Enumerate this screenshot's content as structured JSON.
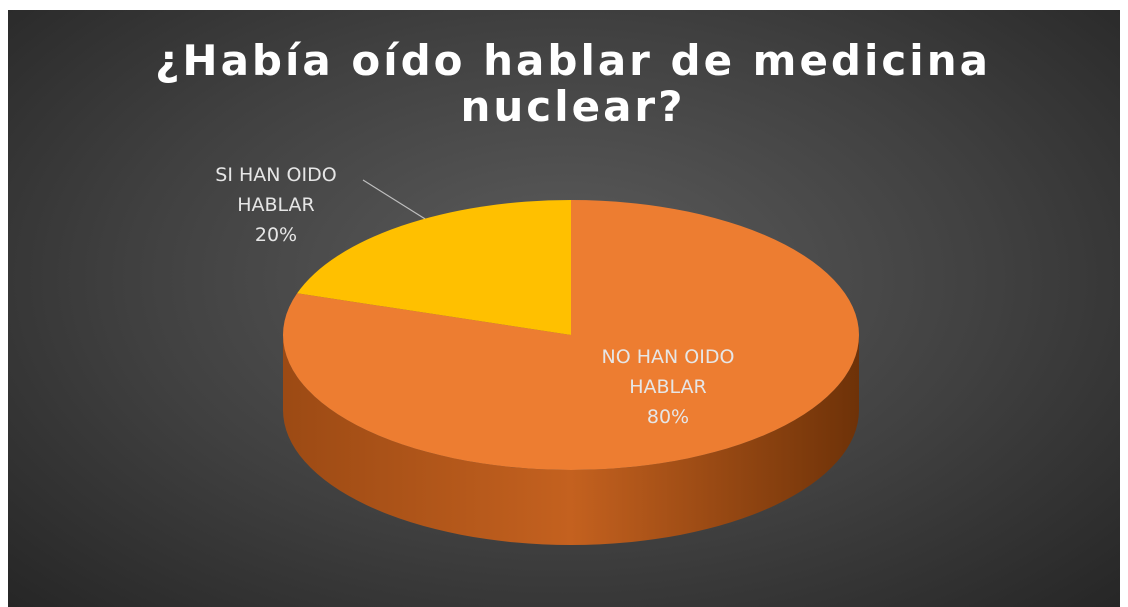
{
  "chart_data": {
    "type": "pie3d",
    "title": "¿Había oído hablar de medicina nuclear?",
    "categories": [
      "NO HAN OIDO HABLAR",
      "SI HAN OIDO HABLAR"
    ],
    "values": [
      80,
      20
    ],
    "value_labels": [
      "80%",
      "20%"
    ],
    "colors": [
      "#ED7D31",
      "#FFC000"
    ]
  }
}
